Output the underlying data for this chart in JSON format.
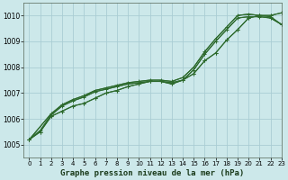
{
  "title": "Graphe pression niveau de la mer (hPa)",
  "bg_color": "#cce8ea",
  "line_color": "#2d6a2d",
  "grid_color": "#aacdd4",
  "xlim": [
    -0.5,
    23
  ],
  "ylim": [
    1004.5,
    1010.5
  ],
  "yticks": [
    1005,
    1006,
    1007,
    1008,
    1009,
    1010
  ],
  "xticks": [
    0,
    1,
    2,
    3,
    4,
    5,
    6,
    7,
    8,
    9,
    10,
    11,
    12,
    13,
    14,
    15,
    16,
    17,
    18,
    19,
    20,
    21,
    22,
    23
  ],
  "series": [
    {
      "x": [
        0,
        1,
        2,
        3,
        4,
        5,
        6,
        7,
        8,
        9,
        10,
        11,
        12,
        13,
        14,
        15,
        16,
        17,
        18,
        19,
        20,
        21,
        22,
        23
      ],
      "y": [
        1005.2,
        1005.5,
        1006.1,
        1006.3,
        1006.5,
        1006.6,
        1006.8,
        1007.0,
        1007.1,
        1007.25,
        1007.35,
        1007.45,
        1007.45,
        1007.35,
        1007.5,
        1007.75,
        1008.25,
        1008.55,
        1009.05,
        1009.45,
        1009.9,
        1010.0,
        1010.0,
        1010.1
      ],
      "has_markers": true
    },
    {
      "x": [
        0,
        1,
        2,
        3,
        4,
        5,
        6,
        7,
        8,
        9,
        10,
        11,
        12,
        13,
        14,
        15,
        16,
        17,
        18,
        19,
        20,
        21,
        22,
        23
      ],
      "y": [
        1005.2,
        1005.55,
        1006.15,
        1006.5,
        1006.7,
        1006.85,
        1007.05,
        1007.15,
        1007.25,
        1007.35,
        1007.4,
        1007.45,
        1007.45,
        1007.4,
        1007.5,
        1007.9,
        1008.5,
        1009.0,
        1009.45,
        1009.9,
        1009.95,
        1009.95,
        1009.9,
        1009.65
      ],
      "has_markers": false
    },
    {
      "x": [
        0,
        2,
        3,
        4,
        5,
        6,
        7,
        8,
        9,
        10,
        11,
        12,
        13,
        14,
        15,
        16,
        17,
        18,
        19,
        20,
        21,
        22,
        23
      ],
      "y": [
        1005.2,
        1006.2,
        1006.55,
        1006.75,
        1006.9,
        1007.1,
        1007.2,
        1007.3,
        1007.4,
        1007.45,
        1007.5,
        1007.5,
        1007.45,
        1007.6,
        1008.0,
        1008.6,
        1009.1,
        1009.55,
        1010.0,
        1010.05,
        1010.0,
        1009.95,
        1009.65
      ],
      "has_markers": false
    }
  ]
}
